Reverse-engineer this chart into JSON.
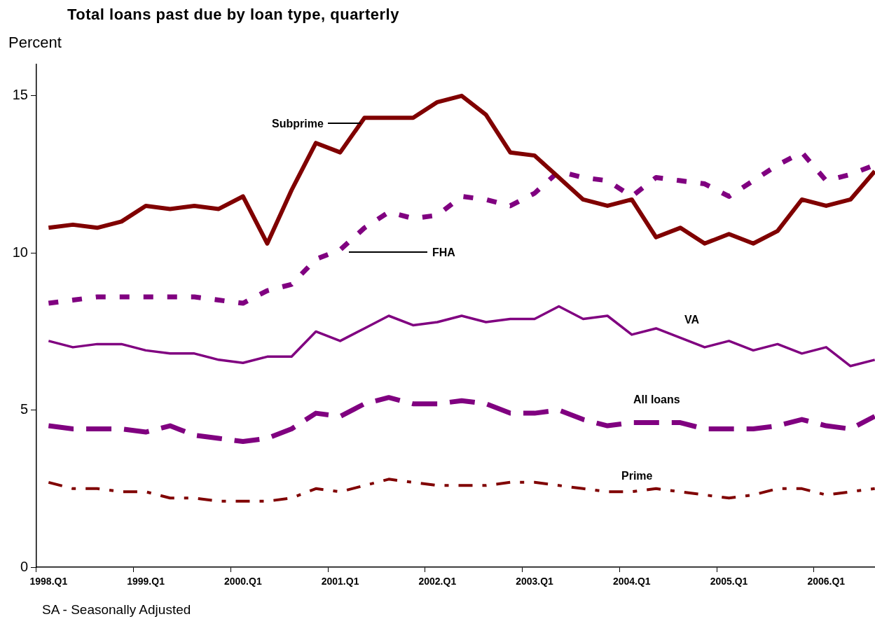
{
  "chart_data": {
    "type": "line",
    "title": "Total loans past due by loan type, quarterly",
    "ylabel": "Percent",
    "categories": [
      "1998.Q1",
      null,
      null,
      null,
      "1999.Q1",
      null,
      null,
      null,
      "2000.Q1",
      null,
      null,
      null,
      "2001.Q1",
      null,
      null,
      null,
      "2002.Q1",
      null,
      null,
      null,
      "2003.Q1",
      null,
      null,
      null,
      "2004.Q1",
      null,
      null,
      null,
      "2005.Q1",
      null,
      null,
      null,
      "2006.Q1",
      null,
      null
    ],
    "series": [
      {
        "name": "Subprime",
        "color": "#800000",
        "line_style": "solid",
        "values": [
          10.8,
          10.9,
          10.8,
          11.0,
          11.5,
          11.4,
          11.5,
          11.4,
          11.8,
          10.3,
          12.0,
          13.5,
          13.2,
          14.3,
          14.3,
          14.3,
          14.8,
          15.0,
          14.4,
          13.2,
          13.1,
          12.4,
          11.7,
          11.5,
          11.7,
          10.5,
          10.8,
          10.3,
          10.6,
          10.3,
          10.7,
          11.7,
          11.5,
          11.7,
          12.6
        ]
      },
      {
        "name": "FHA",
        "color": "#800080",
        "line_style": "dashed",
        "values": [
          8.4,
          8.5,
          8.6,
          8.6,
          8.6,
          8.6,
          8.6,
          8.5,
          8.4,
          8.8,
          9.0,
          9.8,
          10.1,
          10.8,
          11.3,
          11.1,
          11.2,
          11.8,
          11.7,
          11.5,
          11.9,
          12.6,
          12.4,
          12.3,
          11.8,
          12.4,
          12.3,
          12.2,
          11.8,
          12.3,
          12.8,
          13.2,
          12.3,
          12.5,
          12.8
        ]
      },
      {
        "name": "VA",
        "color": "#800080",
        "line_style": "solid",
        "values": [
          7.2,
          7.0,
          7.1,
          7.1,
          6.9,
          6.8,
          6.8,
          6.6,
          6.5,
          6.7,
          6.7,
          7.5,
          7.2,
          7.6,
          8.0,
          7.7,
          7.8,
          8.0,
          7.8,
          7.9,
          7.9,
          8.3,
          7.9,
          8.0,
          7.4,
          7.6,
          7.3,
          7.0,
          7.2,
          6.9,
          7.1,
          6.8,
          7.0,
          6.4,
          6.6
        ]
      },
      {
        "name": "All loans",
        "color": "#800080",
        "line_style": "dashed",
        "values": [
          4.5,
          4.4,
          4.4,
          4.4,
          4.3,
          4.5,
          4.2,
          4.1,
          4.0,
          4.1,
          4.4,
          4.9,
          4.8,
          5.2,
          5.4,
          5.2,
          5.2,
          5.3,
          5.2,
          4.9,
          4.9,
          5.0,
          4.7,
          4.5,
          4.6,
          4.6,
          4.6,
          4.4,
          4.4,
          4.4,
          4.5,
          4.7,
          4.5,
          4.4,
          4.8
        ]
      },
      {
        "name": "Prime",
        "color": "#800000",
        "line_style": "dashed",
        "values": [
          2.7,
          2.5,
          2.5,
          2.4,
          2.4,
          2.2,
          2.2,
          2.1,
          2.1,
          2.1,
          2.2,
          2.5,
          2.4,
          2.6,
          2.8,
          2.7,
          2.6,
          2.6,
          2.6,
          2.7,
          2.7,
          2.6,
          2.5,
          2.4,
          2.4,
          2.5,
          2.4,
          2.3,
          2.2,
          2.3,
          2.5,
          2.5,
          2.3,
          2.4,
          2.5
        ]
      }
    ],
    "ylim": [
      0,
      16
    ],
    "yticks": [
      0,
      5,
      10,
      15
    ],
    "grid": false,
    "marker": "none",
    "annotations": [
      "SA - Seasonally Adjusted"
    ]
  }
}
